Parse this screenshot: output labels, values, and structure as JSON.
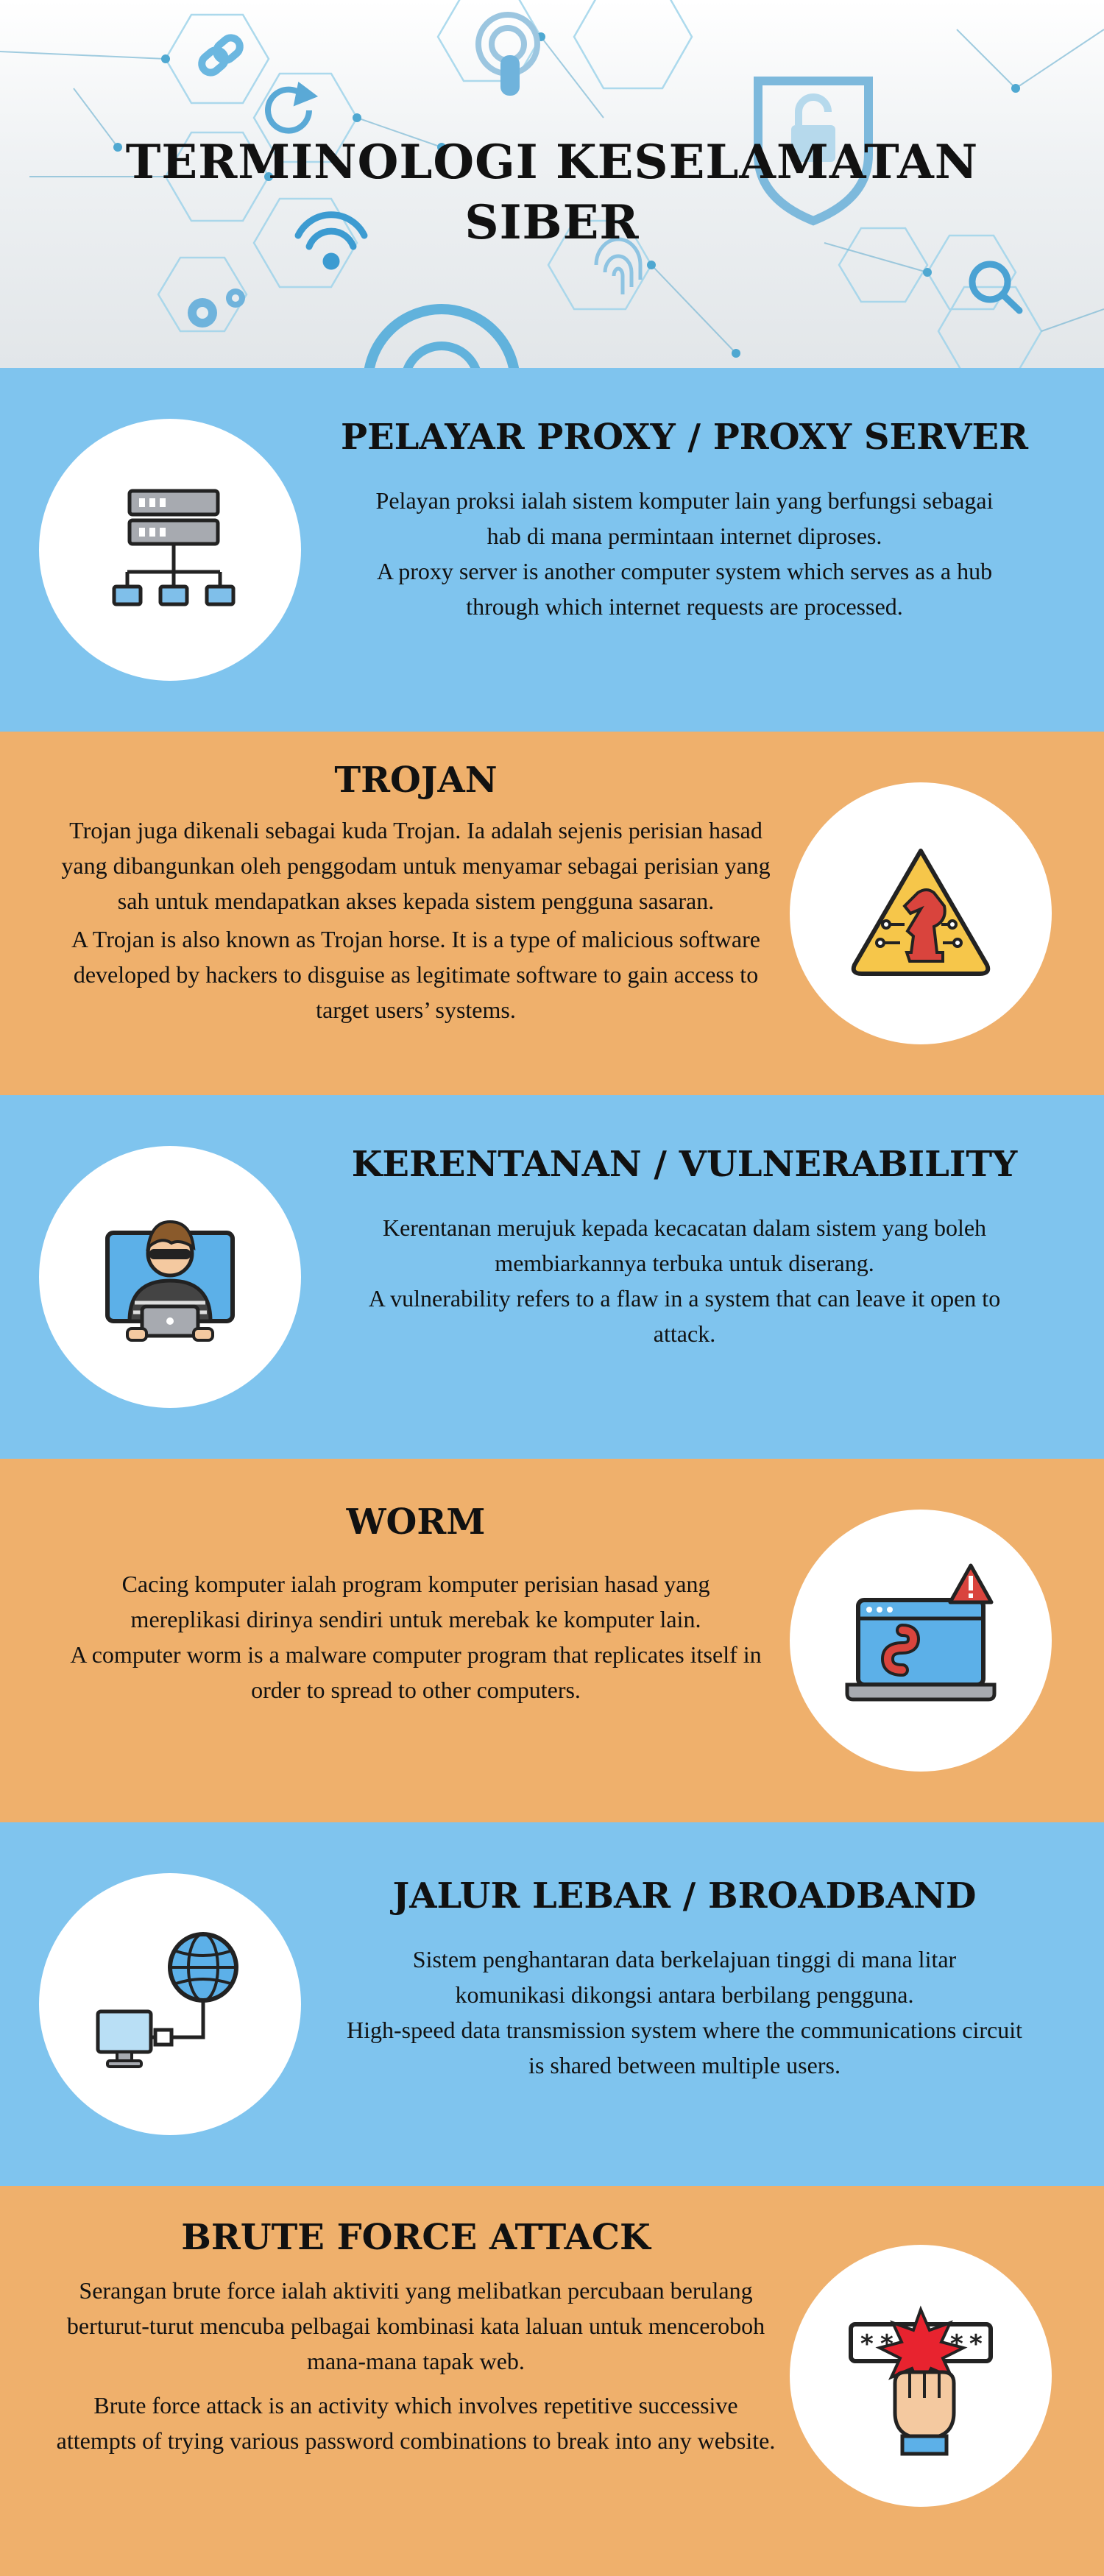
{
  "header": {
    "title": "TERMINOLOGI KESELAMATAN SIBER"
  },
  "sections": [
    {
      "title": "PELAYAR PROXY / PROXY SERVER",
      "malay": "Pelayan proksi ialah sistem komputer lain yang berfungsi sebagai hab di mana permintaan internet diproses.",
      "english": "A proxy server is another computer system which serves as a hub through which internet requests are processed.",
      "icon": "server-network-icon",
      "background": "#7fc4ee"
    },
    {
      "title": "TROJAN",
      "malay": "Trojan juga dikenali sebagai kuda Trojan. Ia adalah sejenis perisian hasad yang dibangunkan oleh penggodam untuk menyamar sebagai perisian yang sah untuk mendapatkan akses kepada sistem pengguna sasaran.",
      "english": "A Trojan is also known as Trojan horse. It is a type of malicious software developed by hackers to disguise as legitimate software to gain access to target users’ systems.",
      "icon": "trojan-horse-warning-icon",
      "background": "#efb06c"
    },
    {
      "title": "KERENTANAN / VULNERABILITY",
      "malay": "Kerentanan merujuk kepada kecacatan dalam sistem yang boleh membiarkannya terbuka untuk diserang.",
      "english": "A vulnerability refers to a flaw in a system that can leave it open to attack.",
      "icon": "hacker-icon",
      "background": "#7fc4ee"
    },
    {
      "title": "WORM",
      "malay": "Cacing komputer ialah program komputer perisian hasad yang mereplikasi dirinya sendiri untuk merebak ke komputer lain.",
      "english": "A computer worm is a malware computer program that replicates itself in order to spread to other computers.",
      "icon": "worm-laptop-icon",
      "background": "#efb06c"
    },
    {
      "title": "JALUR LEBAR / BROADBAND",
      "malay": "Sistem penghantaran data berkelajuan tinggi di mana litar komunikasi dikongsi antara berbilang pengguna.",
      "english": "High-speed data transmission system where the communications circuit is shared between multiple users.",
      "icon": "globe-computer-icon",
      "background": "#7fc4ee"
    },
    {
      "title": "BRUTE FORCE ATTACK",
      "malay": "Serangan brute force ialah aktiviti yang melibatkan percubaan berulang berturut-turut mencuba pelbagai kombinasi kata laluan untuk menceroboh mana-mana tapak web.",
      "english": "Brute force attack is an activity which involves repetitive successive attempts of trying various password combinations to break into any website.",
      "icon": "password-punch-icon",
      "background": "#efb06c"
    }
  ]
}
